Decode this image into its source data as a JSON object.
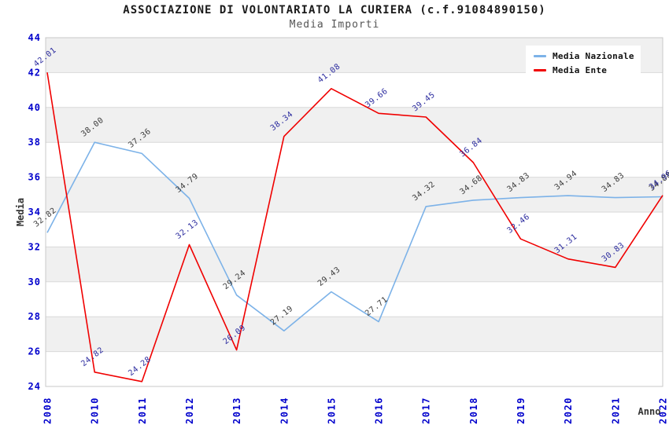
{
  "header": {
    "title": "ASSOCIAZIONE DI VOLONTARIATO LA CURIERA (c.f.91084890150)",
    "subtitle": "Media Importi"
  },
  "legend": {
    "items": [
      {
        "label": "Media Nazionale",
        "color": "#7cb2e8"
      },
      {
        "label": "Media Ente",
        "color": "#f00000"
      }
    ]
  },
  "axes": {
    "x_label": "Anno",
    "y_label": "Media"
  },
  "chart_data": {
    "type": "line",
    "title": "ASSOCIAZIONE DI VOLONTARIATO LA CURIERA (c.f.91084890150)",
    "subtitle": "Media Importi",
    "xlabel": "Anno",
    "ylabel": "Media",
    "ylim": [
      24,
      44
    ],
    "y_ticks": [
      24,
      26,
      28,
      30,
      32,
      34,
      36,
      38,
      40,
      42,
      44
    ],
    "grid": "alternating-bands",
    "legend_position": "top-right",
    "categories": [
      "2008",
      "2010",
      "2011",
      "2012",
      "2013",
      "2014",
      "2015",
      "2016",
      "2017",
      "2018",
      "2019",
      "2020",
      "2021",
      "2022"
    ],
    "series": [
      {
        "name": "Media Nazionale",
        "color": "#7cb2e8",
        "label_color": "#3a3a3a",
        "values": [
          32.82,
          38.0,
          37.36,
          34.79,
          29.24,
          27.19,
          29.43,
          27.71,
          34.32,
          34.68,
          34.83,
          34.94,
          34.83,
          34.88
        ]
      },
      {
        "name": "Media Ente",
        "color": "#f00000",
        "label_color": "#2a2a9e",
        "values": [
          42.01,
          24.82,
          24.28,
          32.13,
          26.09,
          38.34,
          41.08,
          39.66,
          39.45,
          36.84,
          32.46,
          31.31,
          30.83,
          34.96
        ]
      }
    ],
    "style": {
      "tick_label_color": "#0000cc",
      "band_gray": "#f0f0f0",
      "band_white": "#ffffff",
      "gridline_color": "#d9d9d9",
      "border_color": "#c8c8c8",
      "axis_title_color": "#333333"
    }
  }
}
